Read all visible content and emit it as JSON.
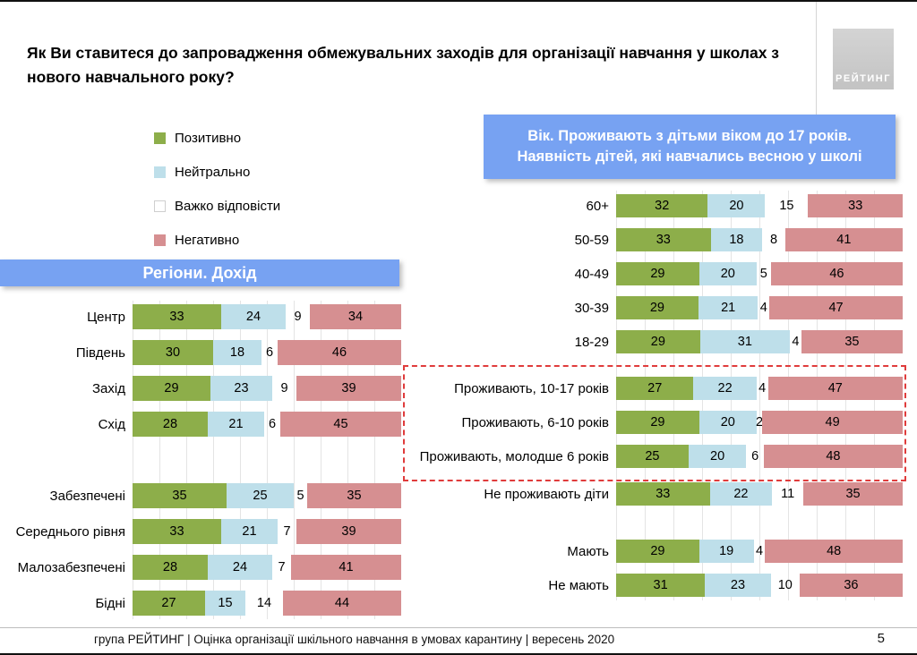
{
  "title": "Як Ви ставитеся до запровадження обмежувальних заходів для організації навчання у школах з нового навчального року?",
  "logo": {
    "text": "РЕЙТИНГ"
  },
  "legend": {
    "items": [
      {
        "label": "Позитивно",
        "color": "#8dae4a"
      },
      {
        "label": "Нейтрально",
        "color": "#bedfea"
      },
      {
        "label": "Важко відповісти",
        "color": "#ffffff"
      },
      {
        "label": "Негативно",
        "color": "#d68f91"
      }
    ]
  },
  "footer": {
    "text": "група РЕЙТИНГ |  Оцінка організації шкільного навчання в умовах карантину | вересень  2020",
    "page": "5"
  },
  "chart_data": [
    {
      "type": "bar",
      "stacked": true,
      "orientation": "horizontal",
      "title": "Регіони. Дохід",
      "xlim": [
        0,
        100
      ],
      "grid": true,
      "series_names": [
        "Позитивно",
        "Нейтрально",
        "Важко відповісти",
        "Негативно"
      ],
      "colors": [
        "#8dae4a",
        "#bedfea",
        "transparent",
        "#d68f91"
      ],
      "groups": [
        {
          "gap_before": 0,
          "boxed": false,
          "rows": [
            {
              "label": "Центр",
              "values": [
                33,
                24,
                9,
                34
              ]
            },
            {
              "label": "Південь",
              "values": [
                30,
                18,
                6,
                46
              ]
            },
            {
              "label": "Захід",
              "values": [
                29,
                23,
                9,
                39
              ]
            },
            {
              "label": "Схід",
              "values": [
                28,
                21,
                6,
                45
              ]
            }
          ]
        },
        {
          "gap_before": 40,
          "boxed": false,
          "rows": [
            {
              "label": "Забезпечені",
              "values": [
                35,
                25,
                5,
                35
              ]
            },
            {
              "label": "Середнього рівня",
              "values": [
                33,
                21,
                7,
                39
              ]
            },
            {
              "label": "Малозабезпечені",
              "values": [
                28,
                24,
                7,
                41
              ]
            },
            {
              "label": "Бідні",
              "values": [
                27,
                15,
                14,
                44
              ]
            }
          ]
        }
      ]
    },
    {
      "type": "bar",
      "stacked": true,
      "orientation": "horizontal",
      "title": "Вік. Проживають з дітьми віком до 17 років. Наявність дітей, які навчались весною у школі",
      "xlim": [
        0,
        100
      ],
      "grid": true,
      "series_names": [
        "Позитивно",
        "Нейтрально",
        "Важко відповісти",
        "Негативно"
      ],
      "colors": [
        "#8dae4a",
        "#bedfea",
        "transparent",
        "#d68f91"
      ],
      "groups": [
        {
          "gap_before": 0,
          "boxed": false,
          "rows": [
            {
              "label": "60+",
              "values": [
                32,
                20,
                15,
                33
              ]
            },
            {
              "label": "50-59",
              "values": [
                33,
                18,
                8,
                41
              ]
            },
            {
              "label": "40-49",
              "values": [
                29,
                20,
                5,
                46
              ]
            },
            {
              "label": "30-39",
              "values": [
                29,
                21,
                4,
                47
              ]
            },
            {
              "label": "18-29",
              "values": [
                29,
                31,
                4,
                35
              ]
            }
          ]
        },
        {
          "gap_before": 14,
          "boxed": true,
          "rows": [
            {
              "label": "Проживають, 10-17 років",
              "values": [
                27,
                22,
                4,
                47
              ]
            },
            {
              "label": "Проживають, 6-10 років",
              "values": [
                29,
                20,
                2,
                49
              ]
            },
            {
              "label": "Проживають, молодше 6 років",
              "values": [
                25,
                20,
                6,
                48
              ]
            }
          ]
        },
        {
          "gap_before": 4,
          "boxed": false,
          "rows": [
            {
              "label": "Не проживають діти",
              "values": [
                33,
                22,
                11,
                35
              ]
            }
          ]
        },
        {
          "gap_before": 26,
          "boxed": false,
          "rows": [
            {
              "label": "Мають",
              "values": [
                29,
                19,
                4,
                48
              ]
            },
            {
              "label": "Не мають",
              "values": [
                31,
                23,
                10,
                36
              ]
            }
          ]
        }
      ]
    }
  ]
}
